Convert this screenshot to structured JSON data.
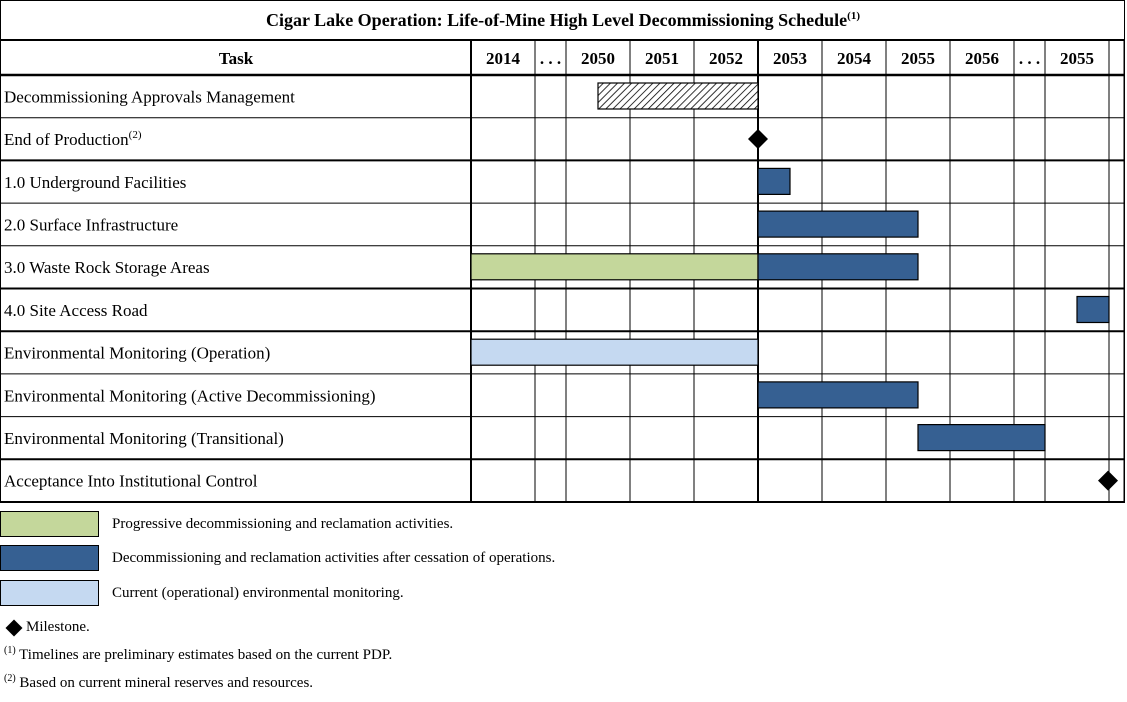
{
  "title": "Cigar Lake Operation: Life-of-Mine High Level Decommissioning Schedule",
  "title_footnote": "(1)",
  "header": {
    "task": "Task",
    "columns": [
      "2014",
      ". . .",
      "2050",
      "2051",
      "2052",
      "2053",
      "2054",
      "2055",
      "2056",
      ". . .",
      "2055",
      ""
    ]
  },
  "tasks": [
    {
      "label": "Decommissioning Approvals Management",
      "sup": ""
    },
    {
      "label": "End of Production",
      "sup": "(2)"
    },
    {
      "label": "1.0 Underground Facilities",
      "sup": ""
    },
    {
      "label": "2.0 Surface Infrastructure",
      "sup": ""
    },
    {
      "label": "3.0 Waste Rock Storage Areas",
      "sup": ""
    },
    {
      "label": "4.0 Site Access Road",
      "sup": ""
    },
    {
      "label": "Environmental Monitoring (Operation)",
      "sup": ""
    },
    {
      "label": "Environmental Monitoring (Active Decommissioning)",
      "sup": ""
    },
    {
      "label": "Environmental Monitoring (Transitional)",
      "sup": ""
    },
    {
      "label": "Acceptance Into Institutional Control",
      "sup": ""
    }
  ],
  "bars": [
    {
      "row": 0,
      "start": 2.5,
      "end": 5,
      "style": "hatched"
    },
    {
      "row": 2,
      "start": 5,
      "end": 5.5,
      "style": "dark"
    },
    {
      "row": 3,
      "start": 5,
      "end": 7.5,
      "style": "dark"
    },
    {
      "row": 4,
      "start": 0,
      "end": 5,
      "style": "green"
    },
    {
      "row": 4,
      "start": 5,
      "end": 7.5,
      "style": "dark"
    },
    {
      "row": 5,
      "start": 10.5,
      "end": 11,
      "style": "dark"
    },
    {
      "row": 6,
      "start": 0,
      "end": 5,
      "style": "light"
    },
    {
      "row": 7,
      "start": 5,
      "end": 7.5,
      "style": "dark"
    },
    {
      "row": 8,
      "start": 7.5,
      "end": 10,
      "style": "dark"
    }
  ],
  "milestones": [
    {
      "row": 1,
      "at": 5
    },
    {
      "row": 9,
      "at": 12
    }
  ],
  "colors": {
    "green": "#c4d79b",
    "dark": "#366092",
    "light": "#c5d9f1",
    "hatch": "#000000",
    "grid": "#000000"
  },
  "legend": [
    {
      "color": "#c4d79b",
      "label": "Progressive decommissioning and reclamation activities."
    },
    {
      "color": "#366092",
      "label": "Decommissioning and reclamation activities after cessation of operations."
    },
    {
      "color": "#c5d9f1",
      "label": "Current (operational) environmental monitoring."
    }
  ],
  "milestone_legend": "Milestone.",
  "notes": [
    {
      "mark": "(1)",
      "text": "Timelines are preliminary estimates based on the current PDP."
    },
    {
      "mark": "(2)",
      "text": "Based on current mineral reserves and resources."
    }
  ]
}
